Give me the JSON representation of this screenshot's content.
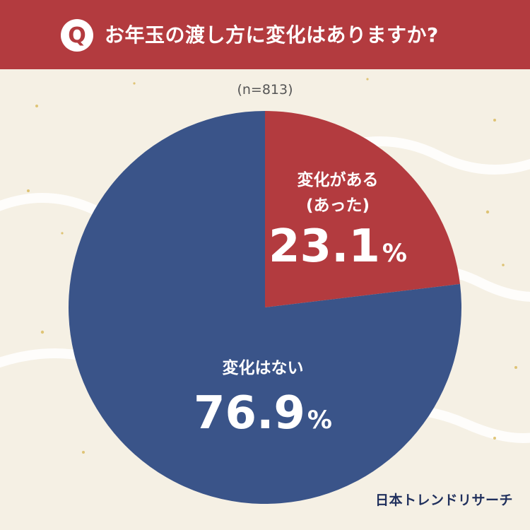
{
  "header": {
    "badge": "Q",
    "title": "お年玉の渡し方に変化はありますか?"
  },
  "sample_size": "(n=813)",
  "brand": "日本トレンドリサーチ",
  "colors": {
    "header": "#b33b3f",
    "changed": "#b33b3f",
    "unchanged": "#3a5489",
    "background": "#f5f0e4"
  },
  "chart_data": {
    "type": "pie",
    "slices": [
      {
        "label": "変化がある",
        "label2": "(あった)",
        "value": 23.1,
        "display": "23.1",
        "unit": "%",
        "color": "#b33b3f"
      },
      {
        "label": "変化はない",
        "label2": "",
        "value": 76.9,
        "display": "76.9",
        "unit": "%",
        "color": "#3a5489"
      }
    ]
  }
}
